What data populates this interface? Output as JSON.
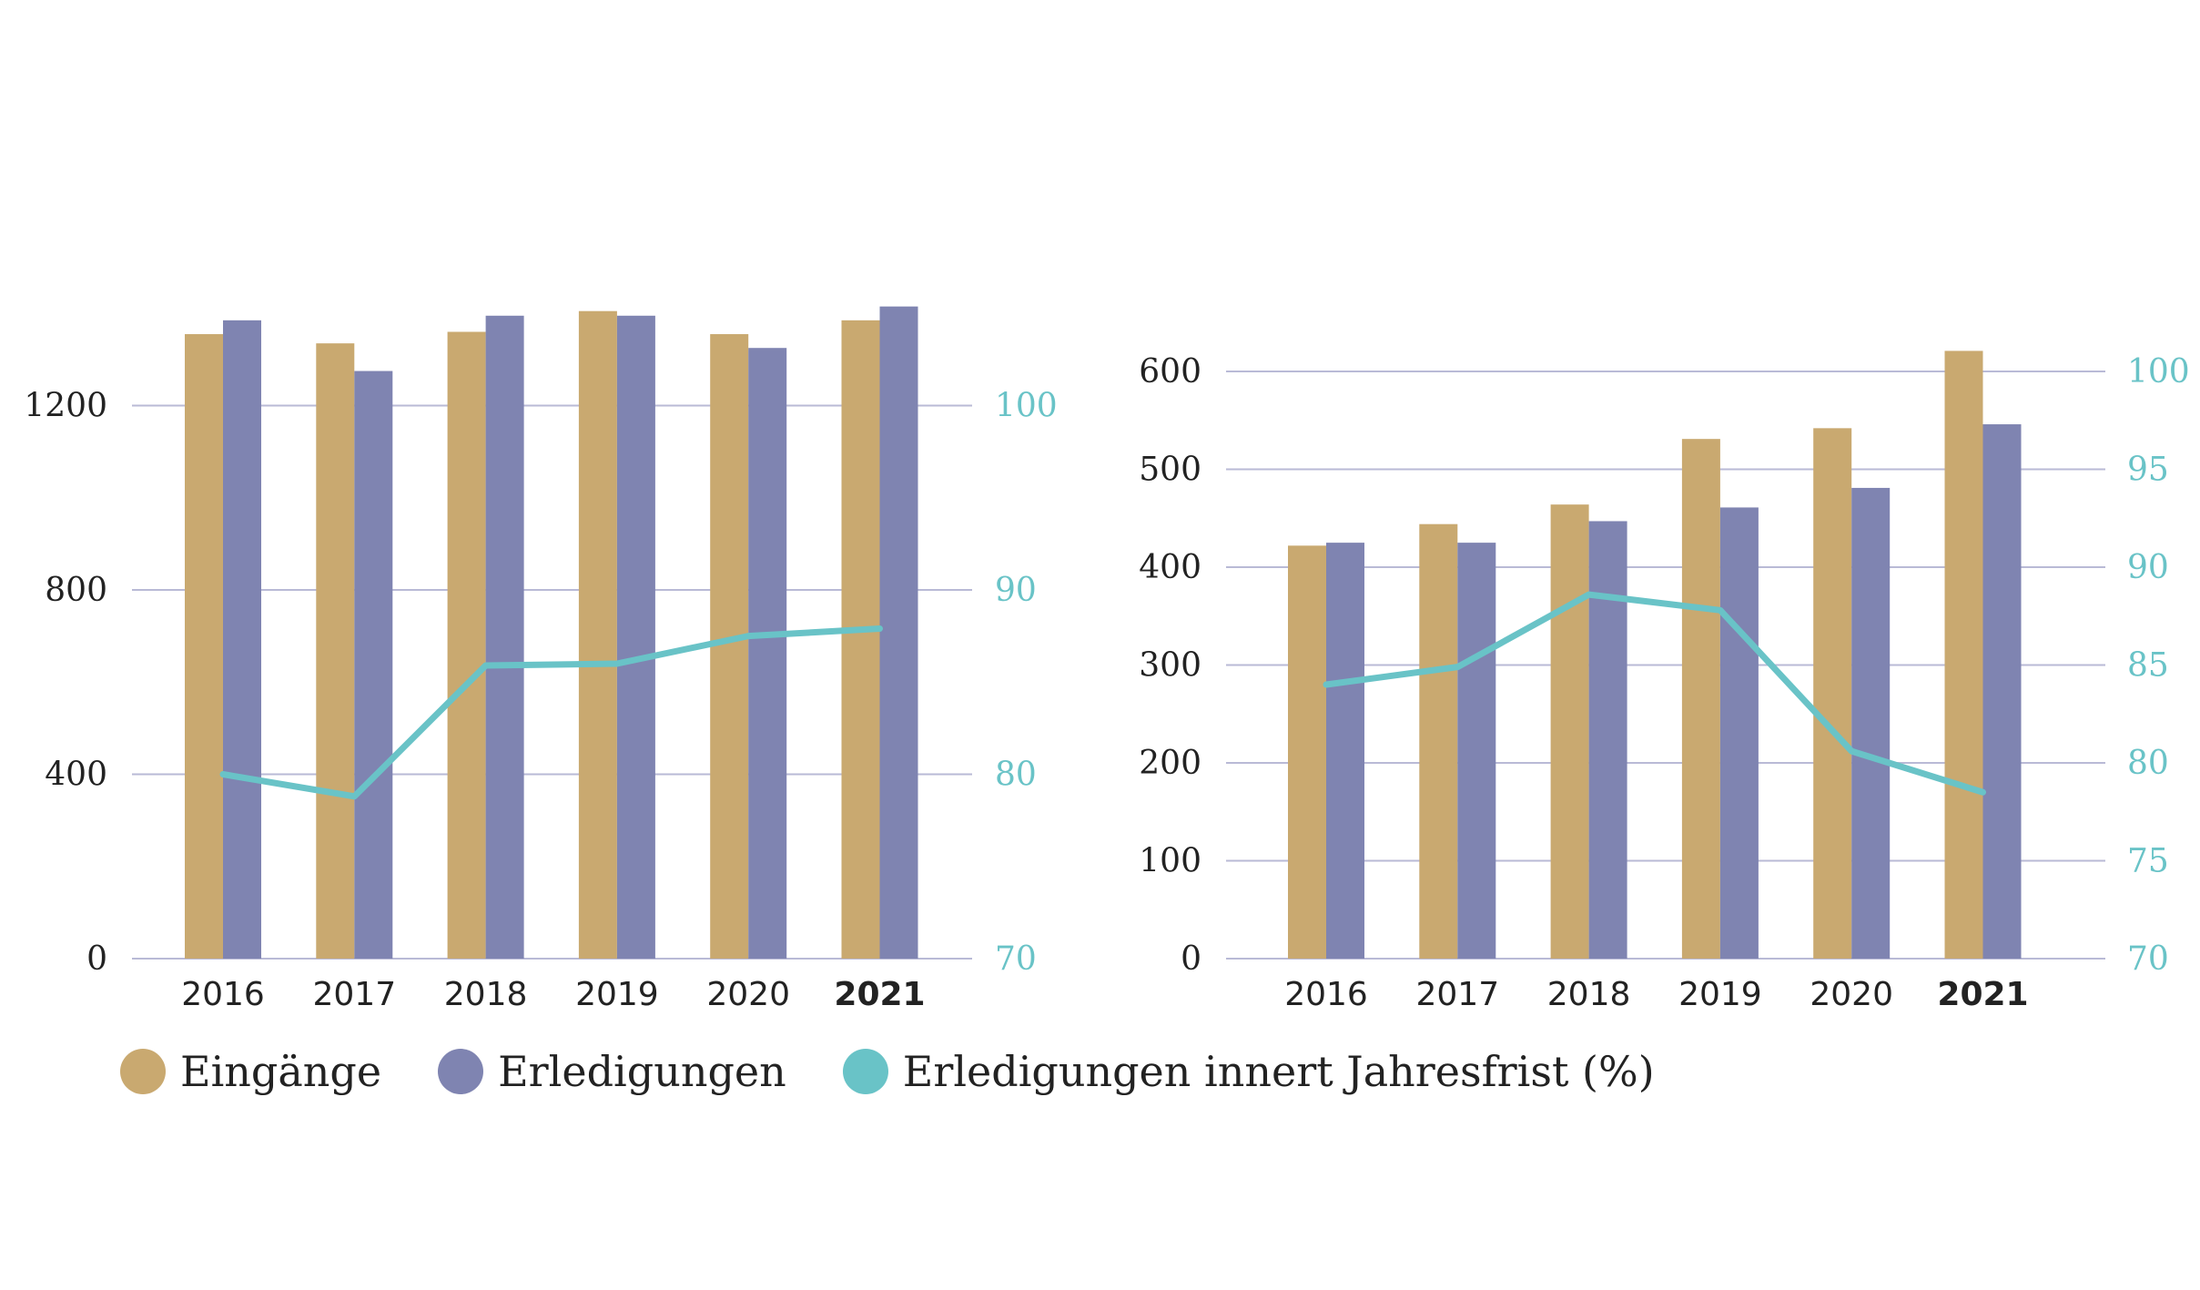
{
  "colors": {
    "eingaenge": "#c9a970",
    "erledigungen": "#7f84b1",
    "frist": "#69c3c7",
    "grid": "#b9bad6",
    "text": "#222222"
  },
  "legend": [
    {
      "label": "Eingänge",
      "color_key": "eingaenge"
    },
    {
      "label": "Erledigungen",
      "color_key": "erledigungen"
    },
    {
      "label": "Erledigungen innert Jahresfrist (%)",
      "color_key": "frist"
    }
  ],
  "chart_data": [
    {
      "type": "bar",
      "categories": [
        "2016",
        "2017",
        "2018",
        "2019",
        "2020",
        "2021"
      ],
      "highlight_category": "2021",
      "series": [
        {
          "name": "Eingänge",
          "values": [
            1355,
            1335,
            1360,
            1405,
            1355,
            1385
          ]
        },
        {
          "name": "Erledigungen",
          "values": [
            1385,
            1275,
            1395,
            1395,
            1325,
            1415
          ]
        }
      ],
      "line_series": {
        "name": "Erledigungen innert Jahresfrist (%)",
        "axis": "right",
        "values": [
          80.0,
          78.8,
          85.9,
          86.0,
          87.5,
          87.9
        ]
      },
      "ylim": [
        0,
        1600
      ],
      "yticks": [
        0,
        400,
        800,
        1200
      ],
      "y2lim": [
        70,
        100
      ],
      "y2ticks": [
        70,
        80,
        90,
        100
      ],
      "grid": true
    },
    {
      "type": "bar",
      "categories": [
        "2016",
        "2017",
        "2018",
        "2019",
        "2020",
        "2021"
      ],
      "highlight_category": "2021",
      "series": [
        {
          "name": "Eingänge",
          "values": [
            422,
            444,
            464,
            531,
            542,
            621
          ]
        },
        {
          "name": "Erledigungen",
          "values": [
            425,
            425,
            447,
            461,
            481,
            546
          ]
        }
      ],
      "line_series": {
        "name": "Erledigungen innert Jahresfrist (%)",
        "axis": "right",
        "values": [
          84.0,
          84.9,
          88.6,
          87.8,
          80.6,
          78.5
        ]
      },
      "ylim": [
        0,
        600
      ],
      "yticks": [
        0,
        100,
        200,
        300,
        400,
        500,
        600
      ],
      "y2lim": [
        70,
        100
      ],
      "y2ticks": [
        70,
        75,
        80,
        85,
        90,
        95,
        100
      ],
      "grid": true
    }
  ]
}
